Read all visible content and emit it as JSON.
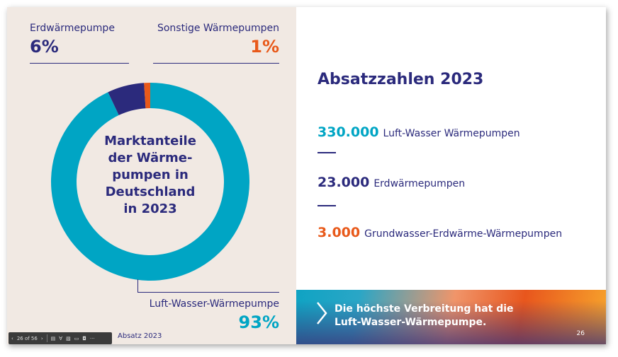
{
  "chart_data": {
    "type": "pie",
    "donut": true,
    "title": "Marktanteile der Wärmepumpen in Deutschland in 2023",
    "categories": [
      "Luft-Wasser-Wärmepumpe",
      "Erdwärmepumpe",
      "Sonstige Wärmepumpen"
    ],
    "values": [
      93,
      6,
      1
    ],
    "value_labels": [
      "93%",
      "6%",
      "1%"
    ],
    "colors": [
      "#00a5c4",
      "#2b2a7c",
      "#e8591a"
    ]
  },
  "left": {
    "center_title": "Marktanteile der Wärme-pumpen in Deutschland in 2023",
    "center_lines": [
      "Marktanteile",
      "der Wärme-",
      "pumpen in",
      "Deutschland",
      "in 2023"
    ],
    "erd_label": "Erdwärmepumpe",
    "erd_pct": "6%",
    "sonst_label": "Sonstige Wärmepumpen",
    "sonst_pct": "1%",
    "luft_label": "Luft-Wasser-Wärmepumpe",
    "luft_pct": "93%",
    "footer": "Absatz 2023"
  },
  "right": {
    "title": "Absatzzahlen 2023",
    "stats": [
      {
        "value": "330.000",
        "label": "Luft-Wasser Wärmepumpen",
        "color": "#00a5c4"
      },
      {
        "value": "23.000",
        "label": "Erdwärmepumpen",
        "color": "#2b2a7c"
      },
      {
        "value": "3.000",
        "label": "Grundwasser-Erdwärme-Wärmepumpen",
        "color": "#e8591a"
      }
    ],
    "banner_line1": "Die höchste Verbreitung hat die",
    "banner_line2": "Luft-Wasser-Wärmepumpe.",
    "page_number": "26"
  },
  "toolbar": {
    "page_indicator": "26 of 56",
    "icons": [
      "chevron-left-icon",
      "chevron-right-icon",
      "grid-icon",
      "pen-icon",
      "subtitles-icon",
      "camera-icon",
      "present-icon",
      "more-icon"
    ]
  }
}
